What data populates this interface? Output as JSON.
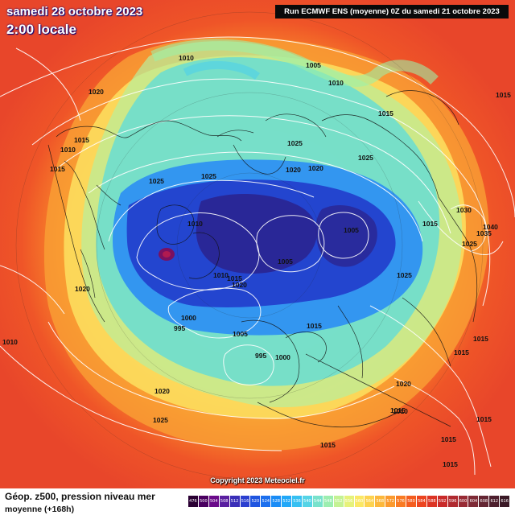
{
  "header": {
    "title": "samedi 28 octobre 2023",
    "time": "2:00 locale",
    "run": "Run ECMWF ENS (moyenne) 0Z du samedi 21 octobre 2023"
  },
  "copyright": "Copyright 2023 Meteociel.fr",
  "footer": {
    "title": "Géop. z500, pression niveau mer",
    "subtitle": "moyenne    (+168h)"
  },
  "scale": {
    "ticks": [
      "476",
      "500",
      "504",
      "508",
      "512",
      "516",
      "520",
      "524",
      "528",
      "532",
      "536",
      "540",
      "544",
      "548",
      "552",
      "556",
      "560",
      "564",
      "568",
      "572",
      "576",
      "580",
      "584",
      "588",
      "592",
      "596",
      "600",
      "604",
      "608",
      "612",
      "616"
    ],
    "colors": [
      "#2a0033",
      "#4a0060",
      "#6a0a8a",
      "#5a1fa0",
      "#3a2fb8",
      "#2b3fd0",
      "#1f55e0",
      "#1b6fee",
      "#1a8cf6",
      "#22a8f8",
      "#36c0f2",
      "#55d4e6",
      "#78e2cc",
      "#9ceeb0",
      "#c4f294",
      "#e6f27a",
      "#fbe865",
      "#fdd350",
      "#fcb83c",
      "#fb9a2e",
      "#f97b24",
      "#f45d1f",
      "#ec4520",
      "#dc3424",
      "#c92a2a",
      "#b02a30",
      "#982b35",
      "#7e2a36",
      "#642633",
      "#4d1f2d",
      "#3a1926"
    ]
  },
  "map": {
    "pressure_labels": [
      {
        "text": "1010",
        "name": "isobar-label-1010-a"
      },
      {
        "text": "1005",
        "name": "isobar-label-1005-a"
      },
      {
        "text": "1010",
        "name": "isobar-label-1010-b"
      },
      {
        "text": "1015",
        "name": "isobar-label-1015-a"
      },
      {
        "text": "1020",
        "name": "isobar-label-1020-a"
      },
      {
        "text": "1015",
        "name": "isobar-label-1015-b"
      },
      {
        "text": "1010",
        "name": "isobar-label-1010-c"
      },
      {
        "text": "1015",
        "name": "isobar-label-1015-c"
      },
      {
        "text": "1025",
        "name": "isobar-label-1025-a"
      },
      {
        "text": "1025",
        "name": "isobar-label-1025-b"
      },
      {
        "text": "1025",
        "name": "isobar-label-1025-c"
      },
      {
        "text": "1020",
        "name": "isobar-label-1020-b"
      },
      {
        "text": "1020",
        "name": "isobar-label-1020-c"
      },
      {
        "text": "1025",
        "name": "isobar-label-1025-d"
      },
      {
        "text": "1015",
        "name": "isobar-label-1015-d"
      },
      {
        "text": "1030",
        "name": "isobar-label-1030"
      },
      {
        "text": "1040",
        "name": "isobar-label-1040"
      },
      {
        "text": "1035",
        "name": "isobar-label-1035"
      },
      {
        "text": "1025",
        "name": "isobar-label-1025-e"
      },
      {
        "text": "1010",
        "name": "isobar-label-1010-d"
      },
      {
        "text": "1005",
        "name": "isobar-label-1005-b"
      },
      {
        "text": "1005",
        "name": "isobar-label-1005-c"
      },
      {
        "text": "1025",
        "name": "isobar-label-1025-f"
      },
      {
        "text": "1010",
        "name": "isobar-label-1010-e"
      },
      {
        "text": "1015",
        "name": "isobar-label-1015-e"
      },
      {
        "text": "1020",
        "name": "isobar-label-1020-d"
      },
      {
        "text": "1020",
        "name": "isobar-label-1020-e"
      },
      {
        "text": "1000",
        "name": "isobar-label-1000-a"
      },
      {
        "text": "995",
        "name": "isobar-label-995-a"
      },
      {
        "text": "1005",
        "name": "isobar-label-1005-d"
      },
      {
        "text": "1015",
        "name": "isobar-label-1015-f"
      },
      {
        "text": "1010",
        "name": "isobar-label-1010-f"
      },
      {
        "text": "995",
        "name": "isobar-label-995-b"
      },
      {
        "text": "1000",
        "name": "isobar-label-1000-b"
      },
      {
        "text": "1015",
        "name": "isobar-label-1015-g"
      },
      {
        "text": "1015",
        "name": "isobar-label-1015-h"
      },
      {
        "text": "1020",
        "name": "isobar-label-1020-f"
      },
      {
        "text": "1020",
        "name": "isobar-label-1020-g"
      },
      {
        "text": "1025",
        "name": "isobar-label-1025-g"
      },
      {
        "text": "1015",
        "name": "isobar-label-1015-i"
      },
      {
        "text": "1010",
        "name": "isobar-label-1010-g"
      },
      {
        "text": "1015",
        "name": "isobar-label-1015-j"
      },
      {
        "text": "1015",
        "name": "isobar-label-1015-k"
      },
      {
        "text": "1015",
        "name": "isobar-label-1015-l"
      },
      {
        "text": "1015",
        "name": "isobar-label-1015-m"
      },
      {
        "text": "1015",
        "name": "isobar-label-1015-n"
      }
    ]
  }
}
